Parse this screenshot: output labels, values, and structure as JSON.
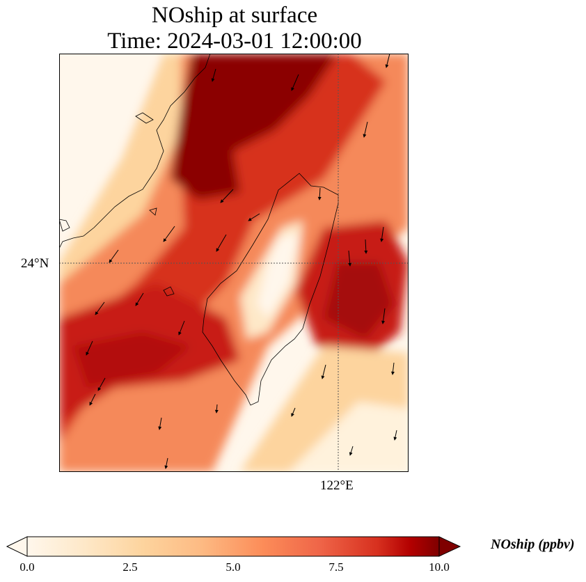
{
  "title": {
    "line1": "NOship at surface",
    "line2": "Time: 2024-03-01 12:00:00"
  },
  "map": {
    "lat_label": "24°N",
    "lon_label": "122°E",
    "gridlines": "dotted",
    "coastlines": true,
    "colormap": "OrRd",
    "colors": {
      "low": "#fff7ec",
      "mid_low": "#fdd49e",
      "mid": "#fc8d59",
      "high": "#d7301f",
      "max": "#7f0000"
    }
  },
  "colorbar": {
    "label": "NOship (ppbv)",
    "ticks": [
      "0.0",
      "2.5",
      "5.0",
      "7.5",
      "10.0"
    ],
    "min": 0,
    "max": 10,
    "extend": "both"
  }
}
